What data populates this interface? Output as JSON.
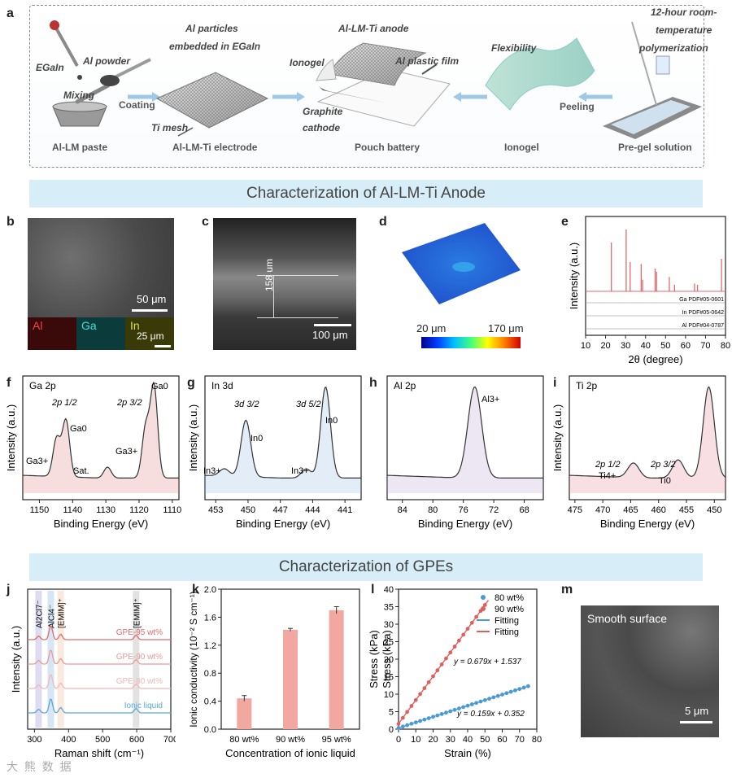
{
  "panel_letters": {
    "a": "a",
    "b": "b",
    "c": "c",
    "d": "d",
    "e": "e",
    "f": "f",
    "g": "g",
    "h": "h",
    "i": "i",
    "j": "j",
    "k": "k",
    "l": "l",
    "m": "m"
  },
  "schematic": {
    "egain": "EGaIn",
    "al_powder": "Al powder",
    "mixing": "Mixing",
    "coating": "Coating",
    "al_particles": "Al particles",
    "embedded": "embedded in EGaIn",
    "ti_mesh": "Ti mesh",
    "anode": "Al-LM-Ti anode",
    "ionogel_top": "Ionogel",
    "al_film": "Al plastic film",
    "graphite": "Graphite",
    "cathode": "cathode",
    "flexibility": "Flexibility",
    "peeling": "Peeling",
    "polym1": "12-hour room-",
    "polym2": "temperature",
    "polym3": "polymerization",
    "step1": "Al-LM paste",
    "step2": "Al-LM-Ti electrode",
    "step3": "Pouch battery",
    "step4": "Ionogel",
    "step5": "Pre-gel solution"
  },
  "banner1": "Characterization of Al-LM-Ti Anode",
  "banner2": "Characterization of GPEs",
  "panel_b": {
    "scale": "50 μm",
    "scale2": "25 μm",
    "el1": "Al",
    "el2": "Ga",
    "el3": "In"
  },
  "panel_c": {
    "thickness": "158 um",
    "scale": "100 μm"
  },
  "panel_d": {
    "min": "20 μm",
    "max": "170 μm"
  },
  "chart_data": [
    {
      "id": "e",
      "type": "line",
      "xlabel": "2θ (degree)",
      "ylabel": "Intensity (a.u.)",
      "xlim": [
        10,
        80
      ],
      "xticks": [
        10,
        20,
        30,
        40,
        50,
        60,
        70,
        80
      ],
      "refs": [
        "Ga PDF#05-0601",
        "In PDF#05-0642",
        "Al PDF#04-0787"
      ],
      "peaks": [
        22.9,
        30.3,
        32.3,
        37.8,
        38.5,
        44.8,
        45.5,
        51.9,
        54.5,
        64.5,
        66.0,
        78.0
      ]
    },
    {
      "id": "f",
      "type": "line",
      "title": "Ga 2p",
      "xlabel": "Binding Energy (eV)",
      "ylabel": "Intensity (a.u.)",
      "xlim": [
        1155,
        1108
      ],
      "xticks": [
        1150,
        1140,
        1130,
        1120,
        1110
      ],
      "annotations": [
        "2p 1/2",
        "Ga0",
        "Ga3+",
        "Sat.",
        "2p 3/2",
        "Ga3+",
        "Ga0"
      ],
      "peaks": [
        {
          "x": 1144.8,
          "h": 0.42
        },
        {
          "x": 1142.0,
          "h": 0.62
        },
        {
          "x": 1129.5,
          "h": 0.12
        },
        {
          "x": 1118.0,
          "h": 0.55
        },
        {
          "x": 1115.5,
          "h": 1.0
        }
      ]
    },
    {
      "id": "g",
      "type": "line",
      "title": "In 3d",
      "xlabel": "Binding Energy (eV)",
      "ylabel": "Intensity (a.u.)",
      "xlim": [
        454,
        439.5
      ],
      "xticks": [
        453,
        450,
        447,
        444,
        441
      ],
      "annotations": [
        "3d 3/2",
        "In0",
        "In3+",
        "3d 5/2",
        "In3+",
        "In0"
      ],
      "peaks": [
        {
          "x": 452.2,
          "h": 0.08
        },
        {
          "x": 450.2,
          "h": 0.62
        },
        {
          "x": 444.6,
          "h": 0.1
        },
        {
          "x": 442.8,
          "h": 1.0
        }
      ]
    },
    {
      "id": "h",
      "type": "line",
      "title": "Al 2p",
      "xlabel": "Binding Energy (eV)",
      "ylabel": "",
      "xlim": [
        86,
        65.5
      ],
      "xticks": [
        84,
        80,
        76,
        72,
        68
      ],
      "annotations": [
        "Al3+"
      ],
      "peaks": [
        {
          "x": 74.5,
          "h": 1.0
        }
      ]
    },
    {
      "id": "i",
      "type": "line",
      "title": "Ti 2p",
      "xlabel": "Binding Energy (eV)",
      "ylabel": "Intensity (a.u.)",
      "xlim": [
        476,
        448
      ],
      "xticks": [
        475,
        470,
        465,
        460,
        455,
        450
      ],
      "annotations": [
        "2p 1/2",
        "Ti4+",
        "2p 3/2",
        "Ti0"
      ],
      "peaks": [
        {
          "x": 464.5,
          "h": 0.16
        },
        {
          "x": 456.5,
          "h": 0.2
        },
        {
          "x": 451.0,
          "h": 1.0
        }
      ]
    },
    {
      "id": "j",
      "type": "line",
      "xlabel": "Raman shift (cm⁻¹)",
      "ylabel": "Intensity (a.u.)",
      "xlim": [
        280,
        700
      ],
      "xticks": [
        300,
        400,
        500,
        600,
        700
      ],
      "series": [
        {
          "name": "GPE-95 wt%",
          "color": "#e06c6c"
        },
        {
          "name": "GPE-90 wt%",
          "color": "#e89a9a"
        },
        {
          "name": "GPE-80 wt%",
          "color": "#f0b8b8"
        },
        {
          "name": "Ionic liquid",
          "color": "#5aa7d6"
        }
      ],
      "bands": [
        "Al2Cl7⁻",
        "AlCl4⁻",
        "[EMIM]⁺",
        "[EMIM]⁺"
      ],
      "peaks": [
        312,
        348,
        377,
        598
      ]
    },
    {
      "id": "k",
      "type": "bar",
      "categories": [
        "80 wt%",
        "90 wt%",
        "95 wt%"
      ],
      "values": [
        0.44,
        1.42,
        1.7
      ],
      "errors": [
        0.04,
        0.02,
        0.05
      ],
      "xlabel": "Concentration of ionic liquid",
      "ylabel": "Ionic conductivity (10⁻² S cm⁻¹)",
      "ylim": [
        0,
        2.0
      ],
      "yticks": [
        0.0,
        0.4,
        0.8,
        1.2,
        1.6,
        2.0
      ]
    },
    {
      "id": "l",
      "type": "scatter",
      "xlabel": "Strain (%)",
      "ylabel": "Stress (kPa)",
      "xlim": [
        0,
        80
      ],
      "ylim": [
        0,
        40
      ],
      "xticks": [
        0,
        10,
        20,
        30,
        40,
        50,
        60,
        70,
        80
      ],
      "yticks": [
        0,
        5,
        10,
        15,
        20,
        25,
        30,
        35,
        40
      ],
      "legend": [
        "80 wt%",
        "90 wt%",
        "Fitting",
        "Fitting"
      ],
      "series": [
        {
          "name": "80 wt%",
          "color": "#4a9ad6",
          "slope": 0.159,
          "intercept": 0.352,
          "xmax": 75
        },
        {
          "name": "90 wt%",
          "color": "#e06060",
          "slope": 0.679,
          "intercept": 1.537,
          "xmax": 52
        }
      ],
      "eq_80": "y = 0.159x + 0.352",
      "eq_90": "y = 0.679x + 1.537"
    }
  ],
  "panel_m": {
    "title": "Smooth surface",
    "scale": "5 μm"
  },
  "watermark": "大 熊 数 据"
}
